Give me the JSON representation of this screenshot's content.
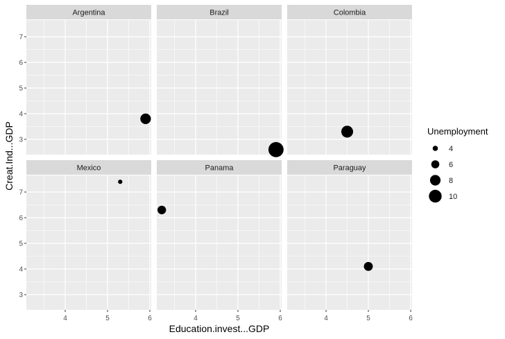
{
  "chart_data": {
    "type": "scatter",
    "facet_by": "country",
    "facets": [
      {
        "label": "Argentina",
        "points": [
          {
            "x": 5.9,
            "y": 3.8,
            "size": 8
          }
        ]
      },
      {
        "label": "Brazil",
        "points": [
          {
            "x": 5.9,
            "y": 2.6,
            "size": 11.5
          }
        ]
      },
      {
        "label": "Colombia",
        "points": [
          {
            "x": 4.5,
            "y": 3.3,
            "size": 9
          }
        ]
      },
      {
        "label": "Mexico",
        "points": [
          {
            "x": 5.3,
            "y": 7.4,
            "size": 3.3
          }
        ]
      },
      {
        "label": "Panama",
        "points": [
          {
            "x": 3.2,
            "y": 6.3,
            "size": 6.5
          }
        ]
      },
      {
        "label": "Paraguay",
        "points": [
          {
            "x": 5.0,
            "y": 4.1,
            "size": 6.8
          }
        ]
      }
    ],
    "xlabel": "Education.invest...GDP",
    "ylabel": "Creat.Ind...GDP",
    "xlim": [
      3.1,
      6.0
    ],
    "ylim": [
      2.3,
      7.75
    ],
    "x_ticks": [
      4,
      5,
      6
    ],
    "y_ticks": [
      3,
      4,
      5,
      6,
      7
    ],
    "size_legend": {
      "title": "Unemployment",
      "values": [
        4,
        6,
        8,
        10
      ],
      "labels": [
        "4",
        "6",
        "8",
        "10"
      ]
    },
    "grid": true,
    "legend_position": "right",
    "colors": {
      "panel": "#ebebeb",
      "strip": "#d9d9d9",
      "grid": "#ffffff",
      "point": "#000000"
    }
  }
}
